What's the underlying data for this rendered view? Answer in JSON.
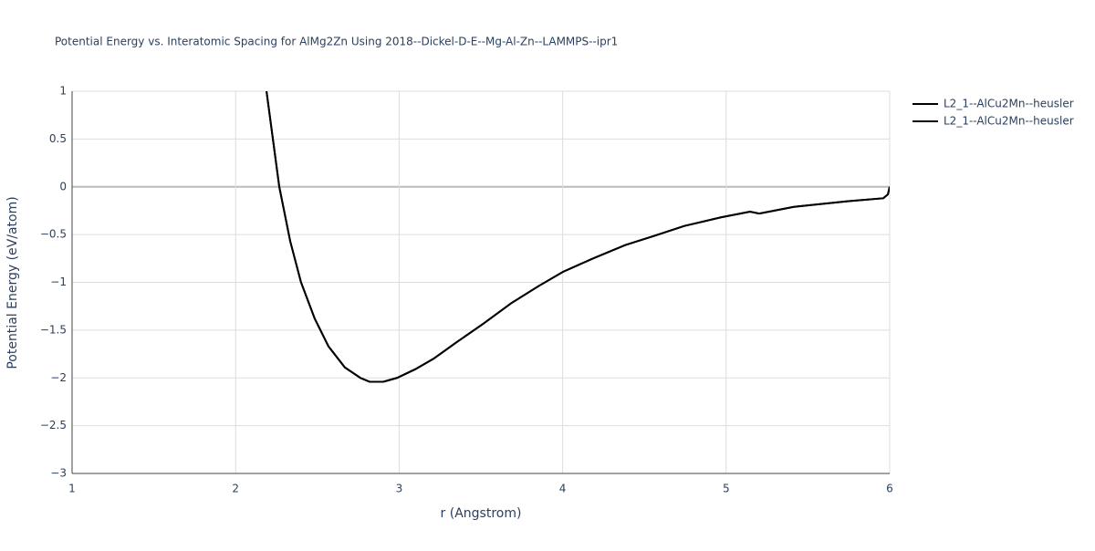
{
  "chart_data": {
    "type": "line",
    "title": "Potential Energy vs. Interatomic Spacing for AlMg2Zn Using 2018--Dickel-D-E--Mg-Al-Zn--LAMMPS--ipr1",
    "x_label": "r (Angstrom)",
    "y_label": "Potential Energy (eV/atom)",
    "x": [
      2.189,
      2.267,
      2.334,
      2.4,
      2.484,
      2.568,
      2.668,
      2.763,
      2.819,
      2.903,
      2.987,
      3.098,
      3.21,
      3.349,
      3.517,
      3.684,
      3.852,
      4.002,
      4.186,
      4.382,
      4.549,
      4.744,
      4.968,
      5.146,
      5.202,
      5.414,
      5.749,
      5.961,
      5.989,
      6.0
    ],
    "series": [
      {
        "name": "L2_1--AlCu2Mn--heusler",
        "color": "#000000",
        "values": [
          1,
          0,
          -0.57,
          -1.0,
          -1.38,
          -1.67,
          -1.89,
          -2.0,
          -2.04,
          -2.04,
          -2.0,
          -1.91,
          -1.8,
          -1.63,
          -1.43,
          -1.22,
          -1.04,
          -0.89,
          -0.75,
          -0.61,
          -0.52,
          -0.41,
          -0.32,
          -0.26,
          -0.28,
          -0.21,
          -0.15,
          -0.12,
          -0.08,
          0.0
        ]
      },
      {
        "name": "L2_1--AlCu2Mn--heusler",
        "color": "#000000",
        "values": [
          1,
          0,
          -0.57,
          -1.0,
          -1.38,
          -1.67,
          -1.89,
          -2.0,
          -2.04,
          -2.04,
          -2.0,
          -1.91,
          -1.8,
          -1.63,
          -1.43,
          -1.22,
          -1.04,
          -0.89,
          -0.75,
          -0.61,
          -0.52,
          -0.41,
          -0.32,
          -0.26,
          -0.28,
          -0.21,
          -0.15,
          -0.12,
          -0.08,
          0.0
        ]
      }
    ],
    "xlim": [
      1,
      6
    ],
    "xticks": [
      1,
      2,
      3,
      4,
      5,
      6
    ],
    "ylim": [
      -3,
      1
    ],
    "yticks": [
      1,
      0.5,
      0,
      {
        "value": -0.5,
        "label": "−0.5"
      },
      {
        "value": -1,
        "label": "−1"
      },
      {
        "value": -1.5,
        "label": "−1.5"
      },
      {
        "value": -2,
        "label": "−2"
      },
      {
        "value": -2.5,
        "label": "−2.5"
      },
      {
        "value": -3,
        "label": "−3"
      }
    ],
    "grid": true,
    "legend": "right"
  }
}
